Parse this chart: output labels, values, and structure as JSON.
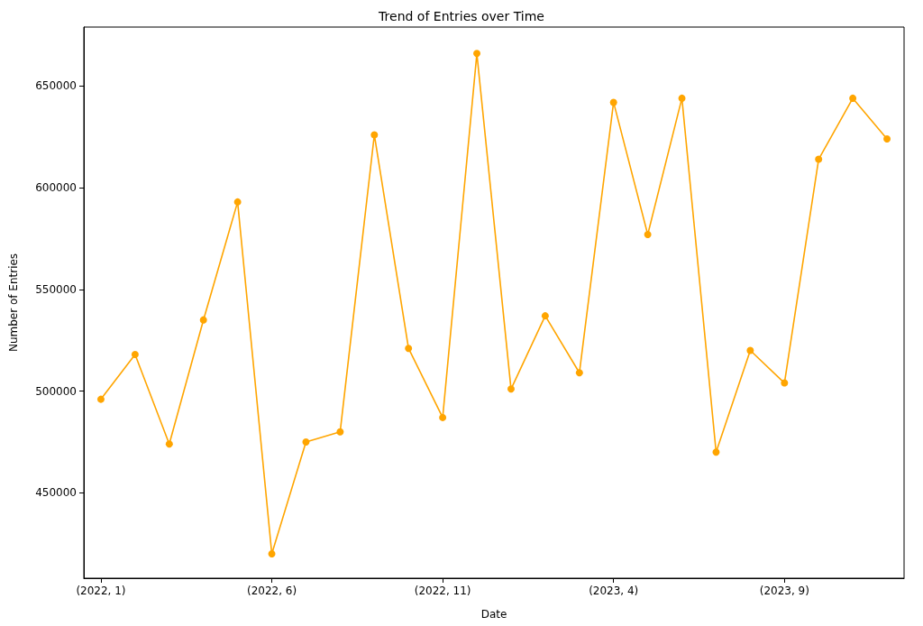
{
  "chart_data": {
    "type": "line",
    "title": "Trend of Entries over Time",
    "xlabel": "Date",
    "ylabel": "Number of Entries",
    "categories": [
      "(2022, 1)",
      null,
      null,
      null,
      null,
      "(2022, 6)",
      null,
      null,
      null,
      null,
      "(2022, 11)",
      null,
      null,
      null,
      null,
      "(2023, 4)",
      null,
      null,
      null,
      null,
      "(2023, 9)",
      null,
      null,
      null
    ],
    "series": [
      {
        "color": "#ffa500",
        "values": [
          496000,
          518000,
          474000,
          535000,
          593000,
          420000,
          475000,
          480000,
          626000,
          521000,
          487000,
          666000,
          501000,
          537000,
          509000,
          642000,
          577000,
          644000,
          470000,
          520000,
          504000,
          614000,
          644000,
          624000
        ]
      }
    ],
    "ylim": [
      408000,
      679000
    ],
    "yticks": [
      450000,
      500000,
      550000,
      600000,
      650000
    ],
    "grid": false,
    "marker": "circle",
    "line_style": "solid"
  }
}
